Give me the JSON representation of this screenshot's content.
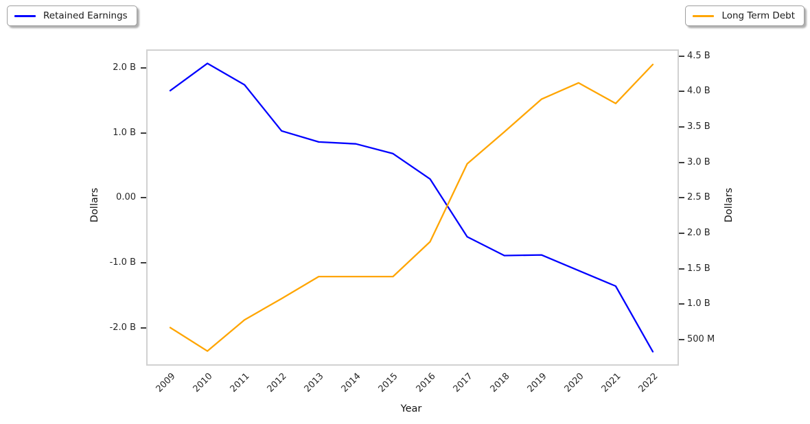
{
  "legend_left": {
    "label": "Retained Earnings"
  },
  "legend_right": {
    "label": "Long Term Debt"
  },
  "chart_data": {
    "type": "line",
    "title": "",
    "xlabel": "Year",
    "x": [
      "2009",
      "2010",
      "2011",
      "2012",
      "2013",
      "2014",
      "2015",
      "2016",
      "2017",
      "2018",
      "2019",
      "2020",
      "2021",
      "2022"
    ],
    "series": [
      {
        "name": "Retained Earnings",
        "slug": "retained-earnings",
        "axis": "left",
        "color": "#0000ff",
        "unit": "billions of dollars",
        "values": [
          1.65,
          2.07,
          1.74,
          1.03,
          0.86,
          0.83,
          0.68,
          0.29,
          -0.6,
          -0.89,
          -0.88,
          -1.12,
          -1.36,
          -2.37
        ]
      },
      {
        "name": "Long Term Debt",
        "slug": "long-term-debt",
        "axis": "right",
        "color": "#ffa500",
        "unit": "billions of dollars",
        "values": [
          0.67,
          0.34,
          0.78,
          1.08,
          1.39,
          1.39,
          1.39,
          1.88,
          2.98,
          3.43,
          3.89,
          4.12,
          3.83,
          4.38
        ]
      }
    ],
    "axes": {
      "left": {
        "label": "Dollars",
        "ylim": [
          -2.564,
          2.264
        ],
        "ticks": [
          {
            "label": "2.0 B",
            "value": 2.0
          },
          {
            "label": "1.0 B",
            "value": 1.0
          },
          {
            "label": "0.00",
            "value": 0.0
          },
          {
            "label": "-1.0 B",
            "value": -1.0
          },
          {
            "label": "-2.0 B",
            "value": -2.0
          }
        ]
      },
      "right": {
        "label": "Dollars",
        "ylim": [
          0.153,
          4.573
        ],
        "ticks": [
          {
            "label": "4.5 B",
            "value": 4.5
          },
          {
            "label": "4.0 B",
            "value": 4.0
          },
          {
            "label": "3.5 B",
            "value": 3.5
          },
          {
            "label": "3.0 B",
            "value": 3.0
          },
          {
            "label": "2.5 B",
            "value": 2.5
          },
          {
            "label": "2.0 B",
            "value": 2.0
          },
          {
            "label": "1.5 B",
            "value": 1.5
          },
          {
            "label": "1.0 B",
            "value": 1.0
          },
          {
            "label": "500 M",
            "value": 0.5
          }
        ]
      }
    },
    "grid": false,
    "legend_positions": [
      "outside top-left",
      "outside top-right"
    ]
  }
}
